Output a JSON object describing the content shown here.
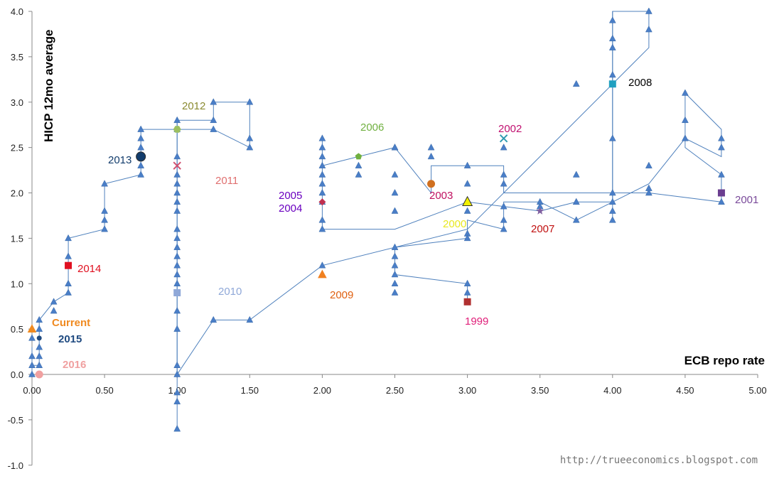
{
  "chart_data": {
    "type": "scatter",
    "title": "",
    "xlabel": "ECB repo rate",
    "ylabel": "HICP 12mo average",
    "xlim": [
      0,
      5
    ],
    "ylim": [
      -1,
      4
    ],
    "xticks": [
      "0.00",
      "0.50",
      "1.00",
      "1.50",
      "2.00",
      "2.50",
      "3.00",
      "3.50",
      "4.00",
      "4.50",
      "5.00"
    ],
    "yticks": [
      "-1.0",
      "-0.5",
      "0.0",
      "0.5",
      "1.0",
      "1.5",
      "2.0",
      "2.5",
      "3.0",
      "3.5",
      "4.0"
    ],
    "colors": {
      "path": "#4F81BD",
      "marker": "#4A7EC7"
    },
    "path": [
      [
        3.0,
        0.8
      ],
      [
        3.0,
        1.0
      ],
      [
        2.5,
        1.1
      ],
      [
        2.5,
        1.2
      ],
      [
        2.5,
        1.4
      ],
      [
        3.0,
        1.5
      ],
      [
        3.0,
        1.7
      ],
      [
        3.25,
        1.6
      ],
      [
        3.25,
        1.9
      ],
      [
        3.5,
        1.9
      ],
      [
        3.75,
        1.7
      ],
      [
        4.0,
        1.9
      ],
      [
        4.25,
        2.1
      ],
      [
        4.5,
        2.6
      ],
      [
        4.75,
        2.4
      ],
      [
        4.75,
        2.7
      ],
      [
        4.5,
        3.1
      ],
      [
        4.5,
        2.5
      ],
      [
        4.75,
        2.2
      ],
      [
        4.75,
        1.9
      ],
      [
        4.25,
        2.0
      ],
      [
        3.25,
        2.0
      ],
      [
        3.25,
        2.3
      ],
      [
        2.75,
        2.3
      ],
      [
        2.75,
        2.0
      ],
      [
        2.5,
        2.5
      ],
      [
        2.25,
        2.4
      ],
      [
        2.0,
        2.3
      ],
      [
        2.0,
        2.6
      ],
      [
        2.0,
        1.6
      ],
      [
        2.5,
        1.6
      ],
      [
        3.0,
        1.9
      ],
      [
        3.5,
        1.8
      ],
      [
        3.75,
        1.9
      ],
      [
        4.0,
        1.9
      ],
      [
        4.0,
        3.2
      ],
      [
        4.0,
        4.0
      ],
      [
        4.25,
        4.0
      ],
      [
        4.25,
        3.6
      ],
      [
        3.0,
        1.6
      ],
      [
        2.0,
        1.2
      ],
      [
        1.5,
        0.6
      ],
      [
        1.25,
        0.6
      ],
      [
        1.0,
        0.0
      ],
      [
        1.0,
        0.9
      ],
      [
        1.0,
        2.8
      ],
      [
        1.25,
        2.8
      ],
      [
        1.25,
        3.0
      ],
      [
        1.5,
        3.0
      ],
      [
        1.5,
        2.5
      ],
      [
        1.25,
        2.7
      ],
      [
        1.0,
        2.7
      ],
      [
        0.75,
        2.7
      ],
      [
        0.75,
        2.2
      ],
      [
        0.5,
        2.1
      ],
      [
        0.5,
        1.6
      ],
      [
        0.25,
        1.5
      ],
      [
        0.25,
        0.9
      ],
      [
        0.15,
        0.8
      ],
      [
        0.05,
        0.6
      ],
      [
        0.05,
        0.4
      ],
      [
        0.05,
        0.1
      ],
      [
        0.0,
        0.1
      ],
      [
        0.0,
        0.3
      ],
      [
        0.0,
        0.0
      ]
    ],
    "stems": [
      [
        0.0,
        0.0
      ],
      [
        0.0,
        0.3
      ],
      [
        1.0,
        -0.6
      ],
      [
        1.0,
        2.8
      ],
      [
        4.0,
        1.7
      ],
      [
        4.0,
        4.0
      ]
    ],
    "markers": [
      [
        3.0,
        0.9
      ],
      [
        2.5,
        1.0
      ],
      [
        2.5,
        0.9
      ],
      [
        2.5,
        1.3
      ],
      [
        3.0,
        1.55
      ],
      [
        3.0,
        1.8
      ],
      [
        3.25,
        1.7
      ],
      [
        3.25,
        1.85
      ],
      [
        3.5,
        1.85
      ],
      [
        3.75,
        1.7
      ],
      [
        3.75,
        1.9
      ],
      [
        4.0,
        1.8
      ],
      [
        4.0,
        1.7
      ],
      [
        4.25,
        2.05
      ],
      [
        4.5,
        2.6
      ],
      [
        4.75,
        2.5
      ],
      [
        4.75,
        2.6
      ],
      [
        4.5,
        2.8
      ],
      [
        4.5,
        3.1
      ],
      [
        4.75,
        2.2
      ],
      [
        4.75,
        1.9
      ],
      [
        4.25,
        2.3
      ],
      [
        3.75,
        2.2
      ],
      [
        3.25,
        2.2
      ],
      [
        3.25,
        2.1
      ],
      [
        3.25,
        2.5
      ],
      [
        3.0,
        2.3
      ],
      [
        3.0,
        2.1
      ],
      [
        2.75,
        2.4
      ],
      [
        2.75,
        2.5
      ],
      [
        2.5,
        2.5
      ],
      [
        2.5,
        2.2
      ],
      [
        2.5,
        2.0
      ],
      [
        2.5,
        1.8
      ],
      [
        2.25,
        2.2
      ],
      [
        2.25,
        2.3
      ],
      [
        2.0,
        2.5
      ],
      [
        2.0,
        2.4
      ],
      [
        2.0,
        2.2
      ],
      [
        2.0,
        2.1
      ],
      [
        2.0,
        2.0
      ],
      [
        2.0,
        1.7
      ],
      [
        2.0,
        1.6
      ],
      [
        3.75,
        3.2
      ],
      [
        4.0,
        2.6
      ],
      [
        4.0,
        2.0
      ],
      [
        4.0,
        3.3
      ],
      [
        4.0,
        3.6
      ],
      [
        4.0,
        3.7
      ],
      [
        4.0,
        3.9
      ],
      [
        4.25,
        3.8
      ],
      [
        4.25,
        4.0
      ],
      [
        1.5,
        2.6
      ],
      [
        1.5,
        2.5
      ],
      [
        1.25,
        2.7
      ],
      [
        1.0,
        2.8
      ],
      [
        1.0,
        2.7
      ],
      [
        1.0,
        2.4
      ],
      [
        1.0,
        2.2
      ],
      [
        1.0,
        2.1
      ],
      [
        1.0,
        2.0
      ],
      [
        1.0,
        1.9
      ],
      [
        1.0,
        1.8
      ],
      [
        1.0,
        1.6
      ],
      [
        1.0,
        1.5
      ],
      [
        1.0,
        1.4
      ],
      [
        1.0,
        1.3
      ],
      [
        1.0,
        1.2
      ],
      [
        1.0,
        1.1
      ],
      [
        1.0,
        1.0
      ],
      [
        1.0,
        0.7
      ],
      [
        1.0,
        0.5
      ],
      [
        1.0,
        0.1
      ],
      [
        1.0,
        -0.2
      ],
      [
        1.0,
        -0.3
      ],
      [
        1.0,
        -0.6
      ],
      [
        0.75,
        2.7
      ],
      [
        0.75,
        2.6
      ],
      [
        0.75,
        2.5
      ],
      [
        0.75,
        2.3
      ],
      [
        0.75,
        2.2
      ],
      [
        0.5,
        2.1
      ],
      [
        0.5,
        1.8
      ],
      [
        0.5,
        1.7
      ],
      [
        0.5,
        1.6
      ],
      [
        0.25,
        1.5
      ],
      [
        0.25,
        1.3
      ],
      [
        0.25,
        1.2
      ],
      [
        0.25,
        1.0
      ],
      [
        0.25,
        0.9
      ],
      [
        0.15,
        0.8
      ],
      [
        0.15,
        0.7
      ],
      [
        0.05,
        0.6
      ],
      [
        0.05,
        0.5
      ],
      [
        0.05,
        0.3
      ],
      [
        0.05,
        0.2
      ],
      [
        0.05,
        0.1
      ],
      [
        0.0,
        0.4
      ],
      [
        0.0,
        0.2
      ],
      [
        0.0,
        0.1
      ],
      [
        0.0,
        0.0
      ],
      [
        3.0,
        1.0
      ],
      [
        3.0,
        1.5
      ],
      [
        3.25,
        1.6
      ],
      [
        3.5,
        1.9
      ],
      [
        3.75,
        1.9
      ],
      [
        2.0,
        1.2
      ],
      [
        1.5,
        0.6
      ],
      [
        1.25,
        0.6
      ],
      [
        1.0,
        0.0
      ],
      [
        1.25,
        2.8
      ],
      [
        1.25,
        3.0
      ],
      [
        1.5,
        3.0
      ],
      [
        2.0,
        2.6
      ],
      [
        2.0,
        2.3
      ],
      [
        2.0,
        1.9
      ],
      [
        2.5,
        2.5
      ],
      [
        2.5,
        1.4
      ],
      [
        2.5,
        1.2
      ],
      [
        2.5,
        1.1
      ],
      [
        4.25,
        2.0
      ],
      [
        4.0,
        1.9
      ]
    ],
    "highlights": [
      {
        "year": "1999",
        "x": 3.0,
        "y": 0.8,
        "shape": "square",
        "color": "#B03030",
        "label_color": "#E0207A"
      },
      {
        "year": "2000",
        "x": 3.0,
        "y": 1.9,
        "shape": "triangle-big",
        "color": "#F0F000",
        "label_color": "#E8E820"
      },
      {
        "year": "2001",
        "x": 4.75,
        "y": 2.0,
        "shape": "square",
        "color": "#6A3D8F",
        "label_color": "#7A4A9A"
      },
      {
        "year": "2002",
        "x": 3.25,
        "y": 2.6,
        "shape": "x",
        "color": "#2E9AB0",
        "label_color": "#C01070"
      },
      {
        "year": "2003",
        "x": 2.75,
        "y": 2.1,
        "shape": "circle",
        "color": "#D07020",
        "label_color": "#C01060"
      },
      {
        "year": "2004",
        "x": 2.0,
        "y": 1.9,
        "shape": "diamond",
        "color": "#C03050",
        "label_color": "#6A00C0"
      },
      {
        "year": "2005",
        "x": 2.0,
        "y": 1.9,
        "shape": "none",
        "color": "#6A00C0",
        "label_color": "#6A00C0"
      },
      {
        "year": "2006",
        "x": 2.25,
        "y": 2.4,
        "shape": "pentagon",
        "color": "#70B040",
        "label_color": "#70B040"
      },
      {
        "year": "2007",
        "x": 3.5,
        "y": 1.8,
        "shape": "star",
        "color": "#8060A0",
        "label_color": "#C01010"
      },
      {
        "year": "2008",
        "x": 4.0,
        "y": 3.2,
        "shape": "square",
        "color": "#20A0C0",
        "label_color": "#000000"
      },
      {
        "year": "2009",
        "x": 2.0,
        "y": 1.1,
        "shape": "triangle",
        "color": "#F08020",
        "label_color": "#E06010"
      },
      {
        "year": "2010",
        "x": 1.0,
        "y": 0.9,
        "shape": "square",
        "color": "#8FA8D8",
        "label_color": "#8FA8D8"
      },
      {
        "year": "2011",
        "x": 1.0,
        "y": 2.3,
        "shape": "x",
        "color": "#D05070",
        "label_color": "#E07070"
      },
      {
        "year": "2012",
        "x": 1.0,
        "y": 2.7,
        "shape": "hexagon",
        "color": "#9CC060",
        "label_color": "#8A8A30"
      },
      {
        "year": "2013",
        "x": 0.75,
        "y": 2.4,
        "shape": "circle-dark",
        "color": "#123C6C",
        "label_color": "#123C6C"
      },
      {
        "year": "2014",
        "x": 0.25,
        "y": 1.2,
        "shape": "square",
        "color": "#E01020",
        "label_color": "#E01020"
      },
      {
        "year": "2015",
        "x": 0.05,
        "y": 0.4,
        "shape": "circle-small",
        "color": "#1F4A80",
        "label_color": "#1F4A80"
      },
      {
        "year": "2016",
        "x": 0.05,
        "y": 0.0,
        "shape": "circle",
        "color": "#F0A0A0",
        "label_color": "#F0A0A0"
      },
      {
        "year": "Current",
        "x": 0.0,
        "y": 0.5,
        "shape": "triangle",
        "color": "#F08A20",
        "label_color": "#F08A20"
      }
    ]
  },
  "credit": "http://trueeconomics.blogspot.com"
}
